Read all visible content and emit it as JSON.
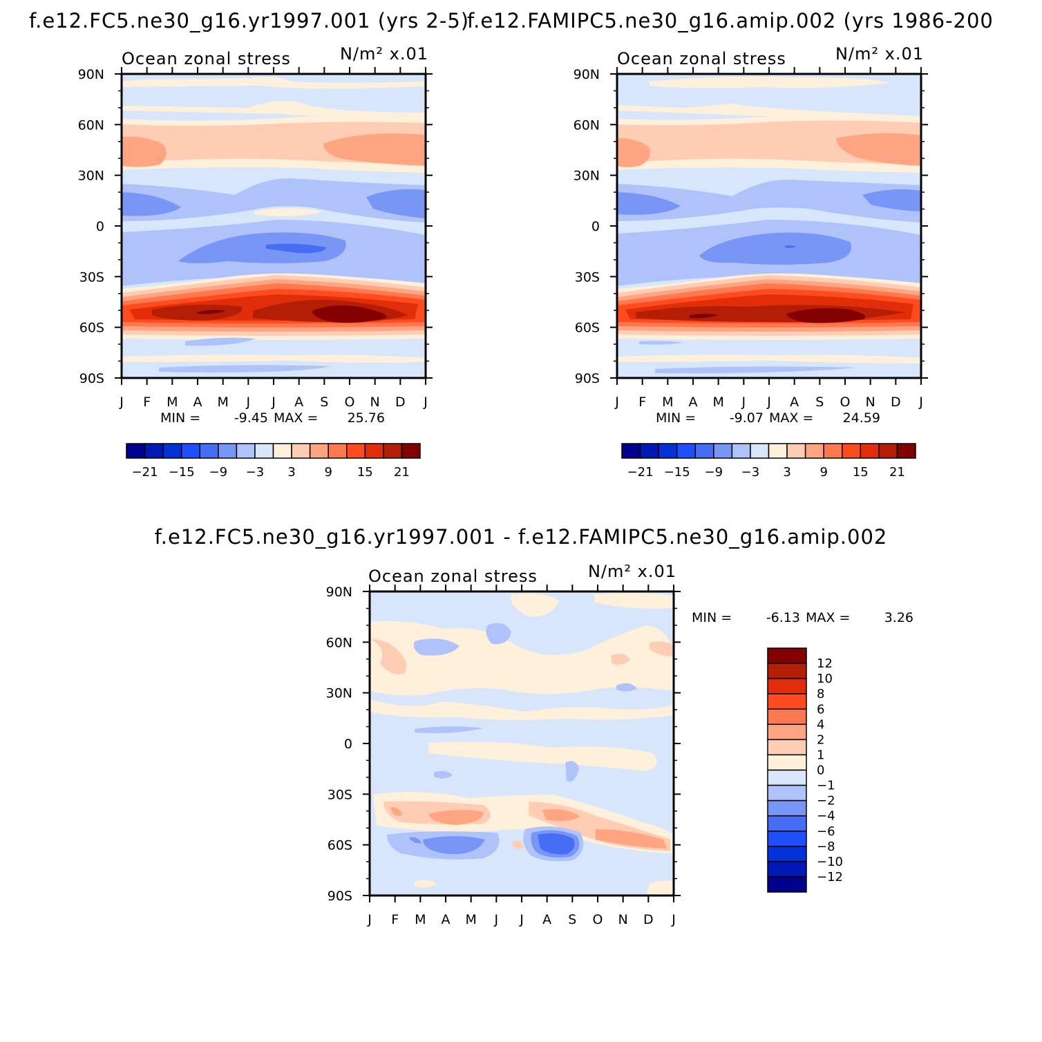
{
  "chart_data": [
    {
      "type": "contour",
      "title": "f.e12.FC5.ne30_g16.yr1997.001 (yrs 2-5)",
      "left_label": "Ocean zonal stress",
      "right_label": "N/m² x.01",
      "x_ticks": [
        "J",
        "F",
        "M",
        "A",
        "M",
        "J",
        "J",
        "A",
        "S",
        "O",
        "N",
        "D",
        "J"
      ],
      "y_ticks": [
        "90N",
        "60N",
        "30N",
        "0",
        "30S",
        "60S",
        "90S"
      ],
      "ylim": [
        -90,
        90
      ],
      "min_label": "MIN =",
      "min_value": "-9.45",
      "max_label": "MAX =",
      "max_value": "25.76",
      "colorbar_orientation": "horizontal",
      "colorbar_ticks": [
        "-21",
        "-15",
        "-9",
        "-3",
        "3",
        "9",
        "15",
        "21"
      ],
      "colorbar_colors": [
        "#00008c",
        "#0019b4",
        "#0032d7",
        "#1e50ff",
        "#466ef5",
        "#7896f5",
        "#afc3fa",
        "#d7e6fa",
        "#fff0dc",
        "#ffcdb4",
        "#ffa582",
        "#ff7850",
        "#ff4b1e",
        "#e12d0a",
        "#b41e05",
        "#820000"
      ]
    },
    {
      "type": "contour",
      "title": "f.e12.FAMIPC5.ne30_g16.amip.002 (yrs 1986-200",
      "left_label": "Ocean zonal stress",
      "right_label": "N/m² x.01",
      "x_ticks": [
        "J",
        "F",
        "M",
        "A",
        "M",
        "J",
        "J",
        "A",
        "S",
        "O",
        "N",
        "D",
        "J"
      ],
      "y_ticks": [
        "90N",
        "60N",
        "30N",
        "0",
        "30S",
        "60S",
        "90S"
      ],
      "ylim": [
        -90,
        90
      ],
      "min_label": "MIN =",
      "min_value": "-9.07",
      "max_label": "MAX =",
      "max_value": "24.59",
      "colorbar_orientation": "horizontal",
      "colorbar_ticks": [
        "-21",
        "-15",
        "-9",
        "-3",
        "3",
        "9",
        "15",
        "21"
      ],
      "colorbar_colors": [
        "#00008c",
        "#0019b4",
        "#0032d7",
        "#1e50ff",
        "#466ef5",
        "#7896f5",
        "#afc3fa",
        "#d7e6fa",
        "#fff0dc",
        "#ffcdb4",
        "#ffa582",
        "#ff7850",
        "#ff4b1e",
        "#e12d0a",
        "#b41e05",
        "#820000"
      ]
    },
    {
      "type": "contour",
      "title": "f.e12.FC5.ne30_g16.yr1997.001 - f.e12.FAMIPC5.ne30_g16.amip.002",
      "left_label": "Ocean zonal stress",
      "right_label": "N/m² x.01",
      "x_ticks": [
        "J",
        "F",
        "M",
        "A",
        "M",
        "J",
        "J",
        "A",
        "S",
        "O",
        "N",
        "D",
        "J"
      ],
      "y_ticks": [
        "90N",
        "60N",
        "30N",
        "0",
        "30S",
        "60S",
        "90S"
      ],
      "ylim": [
        -90,
        90
      ],
      "min_label": "MIN =",
      "min_value": "-6.13",
      "max_label": "MAX =",
      "max_value": "3.26",
      "colorbar_orientation": "vertical",
      "colorbar_ticks": [
        "12",
        "10",
        "8",
        "6",
        "4",
        "2",
        "1",
        "0",
        "-1",
        "-2",
        "-4",
        "-6",
        "-8",
        "-10",
        "-12"
      ],
      "colorbar_colors": [
        "#820000",
        "#b41e05",
        "#e12d0a",
        "#ff4b1e",
        "#ff7850",
        "#ffa582",
        "#ffcdb4",
        "#fff0dc",
        "#d7e6fa",
        "#afc3fa",
        "#7896f5",
        "#466ef5",
        "#1e50ff",
        "#0032d7",
        "#0019b4",
        "#00008c"
      ]
    }
  ]
}
